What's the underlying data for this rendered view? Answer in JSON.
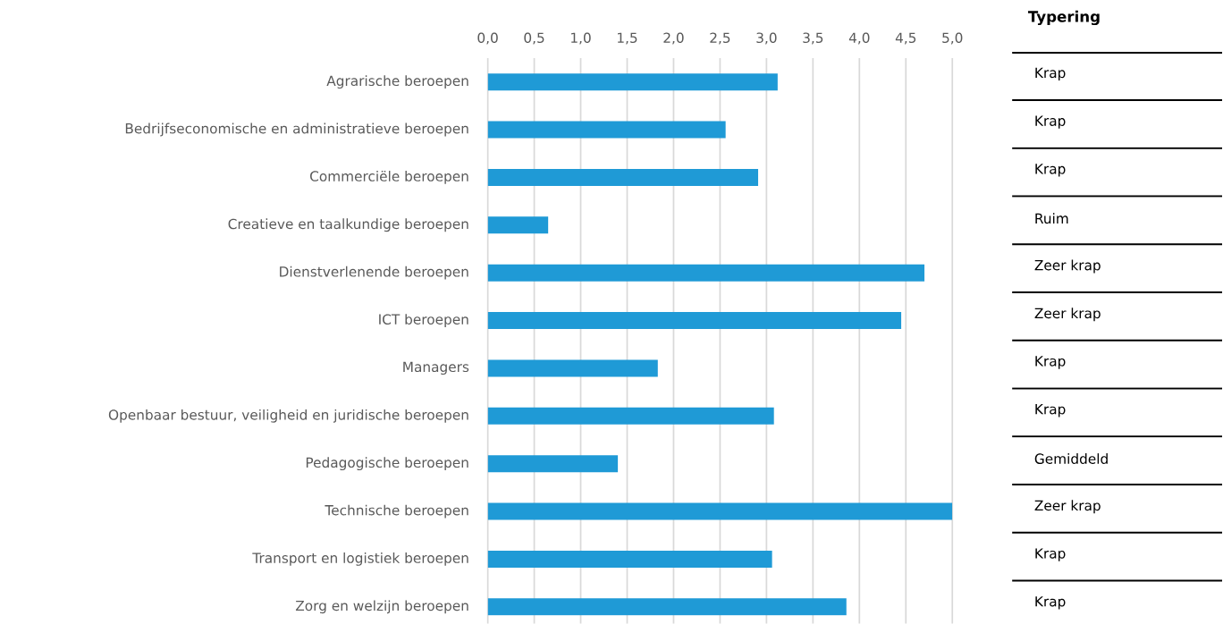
{
  "chart_data": [
    {
      "type": "bar",
      "orientation": "horizontal",
      "categories": [
        "Agrarische beroepen",
        "Bedrijfseconomische en administratieve beroepen",
        "Commerciële beroepen",
        "Creatieve en taalkundige beroepen",
        "Dienstverlenende beroepen",
        "ICT beroepen",
        "Managers",
        "Openbaar bestuur, veiligheid en juridische beroepen",
        "Pedagogische beroepen",
        "Technische beroepen",
        "Transport en logistiek beroepen",
        "Zorg en welzijn beroepen"
      ],
      "values": [
        3.12,
        2.56,
        2.91,
        0.65,
        4.7,
        4.45,
        1.83,
        3.08,
        1.4,
        5.0,
        3.06,
        3.86
      ],
      "color": "#1f9ad6",
      "xlim": [
        0,
        5.0
      ],
      "xticks": [
        {
          "value": 0,
          "label": "0,0"
        },
        {
          "value": 0.5,
          "label": "0,5"
        },
        {
          "value": 1.0,
          "label": "1,0"
        },
        {
          "value": 1.5,
          "label": "1,5"
        },
        {
          "value": 2.0,
          "label": "2,0"
        },
        {
          "value": 2.5,
          "label": "2,5"
        },
        {
          "value": 3.0,
          "label": "3,0"
        },
        {
          "value": 3.5,
          "label": "3,5"
        },
        {
          "value": 4.0,
          "label": "4,0"
        },
        {
          "value": 4.5,
          "label": "4,5"
        },
        {
          "value": 5.0,
          "label": "5,0"
        }
      ],
      "grid": "x"
    },
    {
      "type": "other",
      "title": "Typering",
      "annotations": [
        "Krap",
        "Krap",
        "Krap",
        "Ruim",
        "Zeer krap",
        "Zeer krap",
        "Krap",
        "Krap",
        "Gemiddeld",
        "Zeer krap",
        "Krap",
        "Krap"
      ]
    }
  ]
}
